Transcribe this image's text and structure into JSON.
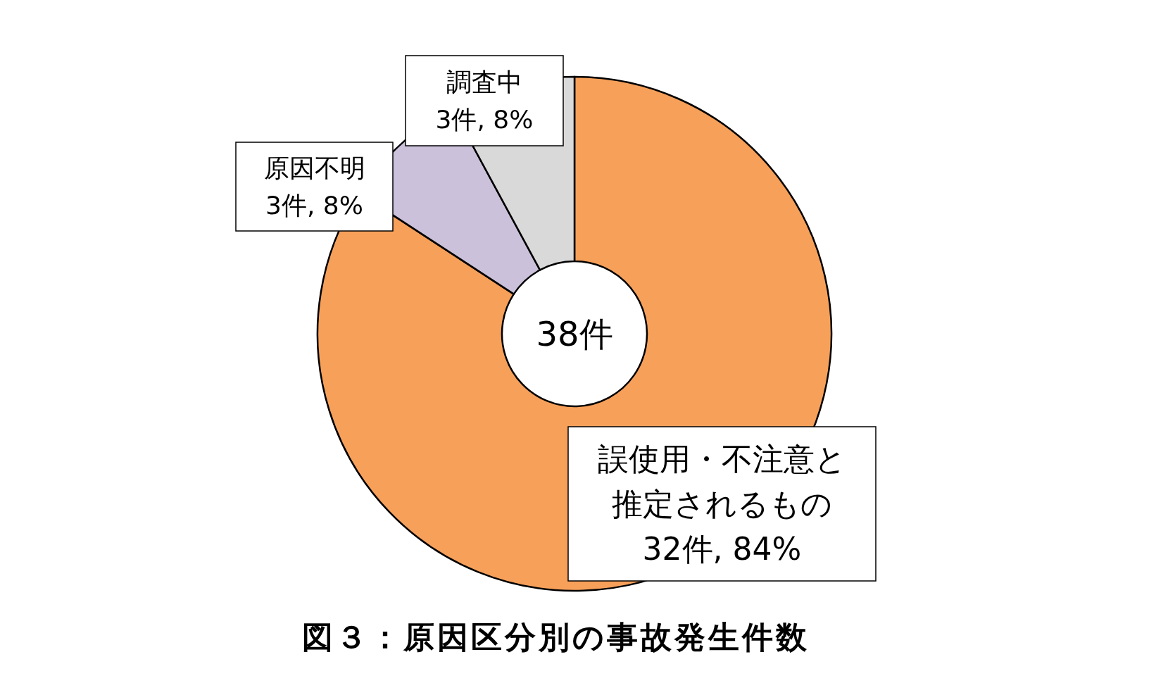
{
  "chart_data": {
    "type": "donut",
    "title": "図３：原因区分別の事故発生件数",
    "categories": [
      "誤使用・不注意と推定されるもの",
      "原因不明",
      "調査中"
    ],
    "values": [
      32,
      3,
      3
    ],
    "colors": [
      "#f7a05a",
      "#cbc1db",
      "#d9d9d9"
    ],
    "value_labels": [
      "32件, 84%",
      "3件, 8%",
      "3件, 8%"
    ],
    "annotations": [
      "38件"
    ]
  }
}
